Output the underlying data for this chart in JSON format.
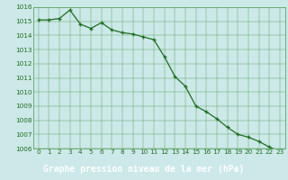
{
  "x": [
    0,
    1,
    2,
    3,
    4,
    5,
    6,
    7,
    8,
    9,
    10,
    11,
    12,
    13,
    14,
    15,
    16,
    17,
    18,
    19,
    20,
    21,
    22,
    23
  ],
  "y": [
    1015.1,
    1015.1,
    1015.2,
    1015.8,
    1014.8,
    1014.5,
    1014.9,
    1014.4,
    1014.2,
    1014.1,
    1013.9,
    1013.7,
    1012.5,
    1011.1,
    1010.4,
    1009.0,
    1008.6,
    1008.1,
    1007.5,
    1007.0,
    1006.8,
    1006.5,
    1006.1,
    1005.8
  ],
  "ylim": [
    1006,
    1016
  ],
  "xlim": [
    -0.5,
    23.5
  ],
  "yticks": [
    1006,
    1007,
    1008,
    1009,
    1010,
    1011,
    1012,
    1013,
    1014,
    1015,
    1016
  ],
  "xticks": [
    0,
    1,
    2,
    3,
    4,
    5,
    6,
    7,
    8,
    9,
    10,
    11,
    12,
    13,
    14,
    15,
    16,
    17,
    18,
    19,
    20,
    21,
    22,
    23
  ],
  "line_color": "#1e6e1e",
  "marker_color": "#1e6e1e",
  "bg_color": "#cce8e8",
  "grid_color": "#4a9a4a",
  "xlabel": "Graphe pression niveau de la mer (hPa)",
  "xlabel_color": "#ffffff",
  "xlabel_bg": "#1e6e1e",
  "tick_color": "#1e6e1e",
  "tick_fontsize": 5.2,
  "xlabel_fontsize": 7.0,
  "marker_size": 3.0,
  "line_width": 0.9
}
